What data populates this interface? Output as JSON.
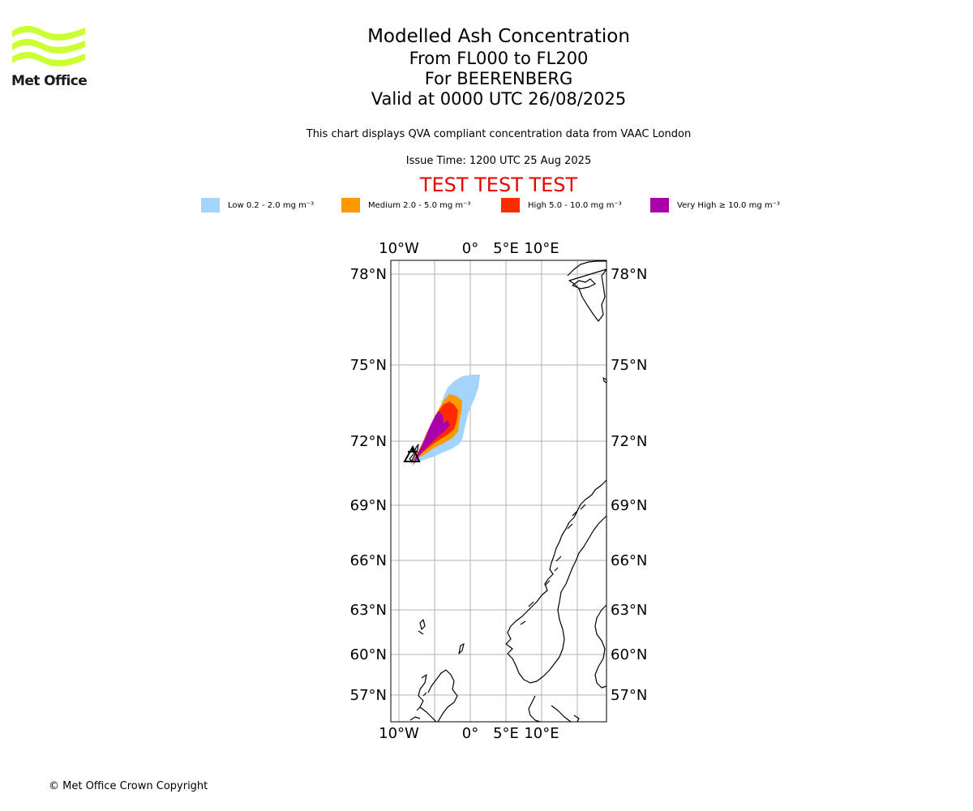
{
  "logo": {
    "text": "Met Office",
    "color": "#ccff33"
  },
  "title": "Modelled Ash Concentration",
  "subtitles": [
    "From FL000 to FL200",
    "For BEERENBERG",
    "Valid at 0000 UTC 26/08/2025"
  ],
  "description": "This chart displays QVA compliant concentration data from VAAC London",
  "issue_time": "Issue Time: 1200 UTC 25 Aug 2025",
  "test_banner": "TEST TEST TEST",
  "legend": [
    {
      "label": "Low 0.2 - 2.0 mg m⁻³",
      "color": "#a3d4fc"
    },
    {
      "label": "Medium 2.0 - 5.0 mg m⁻³",
      "color": "#ff9900"
    },
    {
      "label": "High 5.0 - 10.0 mg m⁻³",
      "color": "#ff2a00"
    },
    {
      "label": "Very High ≥ 10.0 mg m⁻³",
      "color": "#aa00aa"
    }
  ],
  "map": {
    "lon_labels": [
      "10°W",
      "0°",
      "5°E",
      "10°E"
    ],
    "lat_labels": [
      "78°N",
      "75°N",
      "72°N",
      "69°N",
      "66°N",
      "63°N",
      "60°N",
      "57°N"
    ],
    "volcano": "BEERENBERG"
  },
  "copyright": "© Met Office Crown Copyright"
}
